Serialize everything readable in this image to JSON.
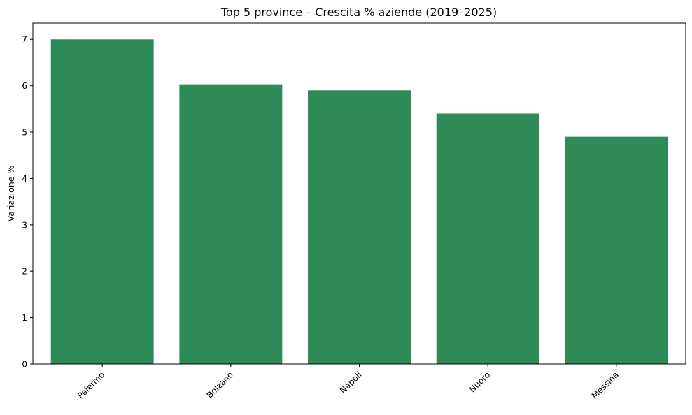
{
  "chart_data": {
    "type": "bar",
    "title": "Top 5 province – Crescita % aziende (2019–2025)",
    "xlabel": "",
    "ylabel": "Variazione %",
    "categories": [
      "Palermo",
      "Bolzano",
      "Napoli",
      "Nuoro",
      "Messina"
    ],
    "values": [
      7.0,
      6.03,
      5.9,
      5.4,
      4.9
    ],
    "ylim": [
      0,
      7.35
    ],
    "yticks": [
      0,
      1,
      2,
      3,
      4,
      5,
      6,
      7
    ],
    "bar_color": "#2e8b57",
    "grid": false,
    "xtick_rotation": 45
  }
}
